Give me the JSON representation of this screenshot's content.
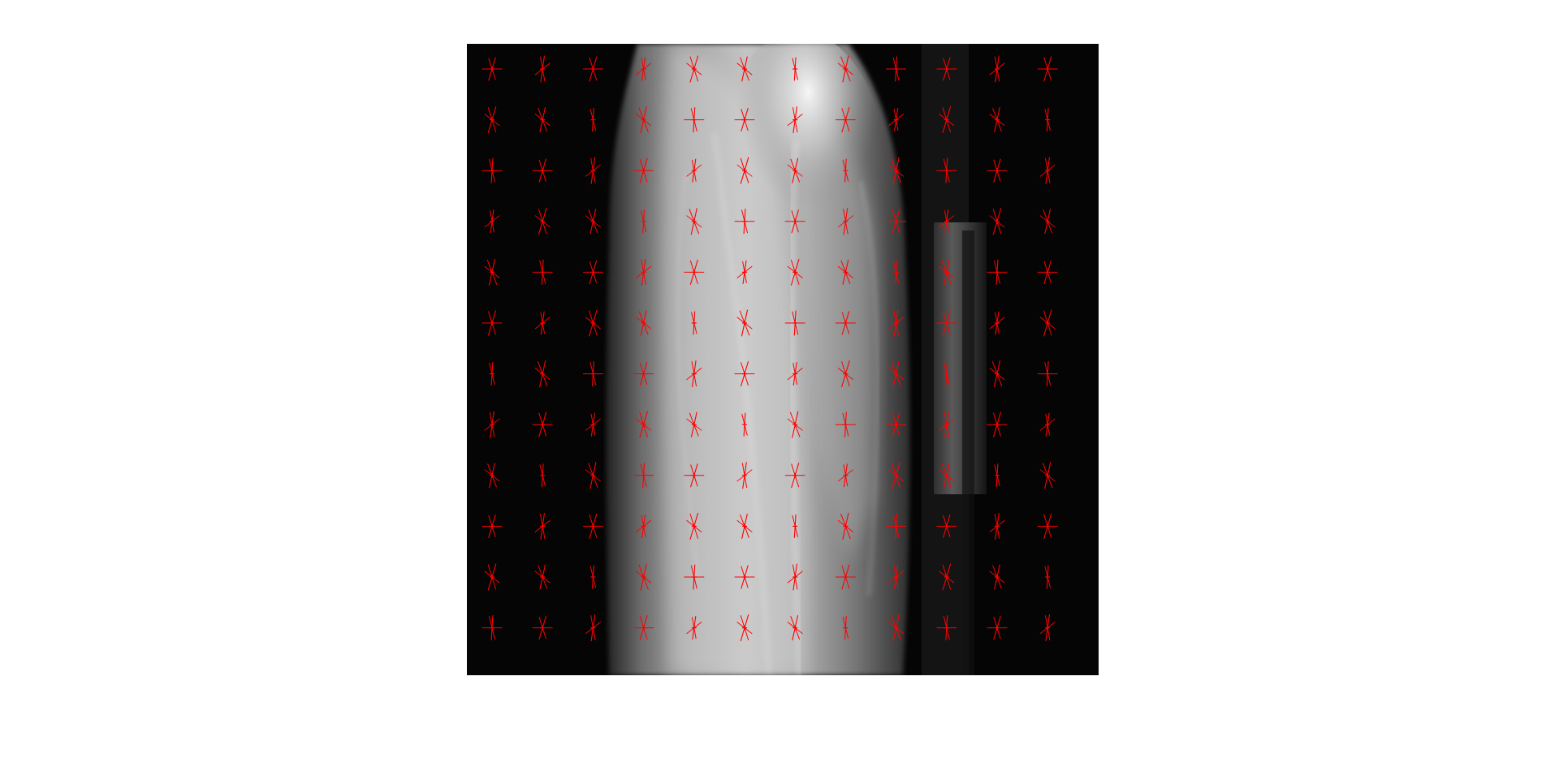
{
  "figure": {
    "kind": "grayscale-radiograph-with-glyph-overlay",
    "background_color": "#ffffff",
    "image_background_color": "#050505",
    "glyph_color": "#ff0000",
    "glyph_grid": {
      "rows": 12,
      "columns": 12
    }
  }
}
